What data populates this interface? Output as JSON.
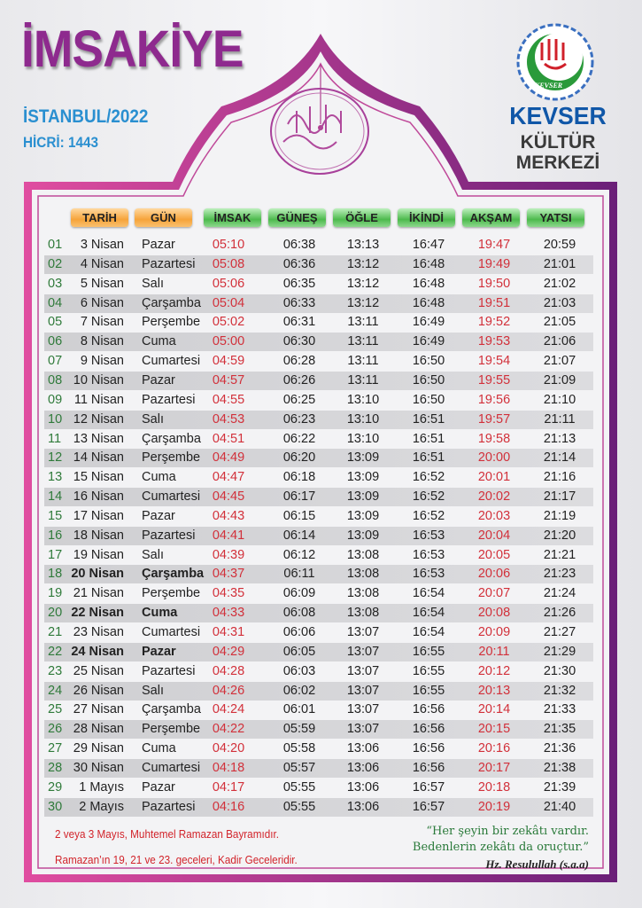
{
  "header": {
    "title": "İMSAKİYE",
    "city_year": "İSTANBUL/2022",
    "hicri": "HİCRİ: 1443",
    "org_name": "KEVSER",
    "org_sub1": "KÜLTÜR",
    "org_sub2": "MERKEZİ",
    "logo_text": "KEVSER"
  },
  "colors": {
    "frame_start": "#e04da0",
    "frame_end": "#6a1f78",
    "title": "#8e2a8e",
    "city": "#2a8fd0",
    "red_time": "#d2303a",
    "row_number": "#2f7a3a"
  },
  "columns": [
    "TARİH",
    "GÜN",
    "İMSAK",
    "GÜNEŞ",
    "ÖĞLE",
    "İKİNDİ",
    "AKŞAM",
    "YATSI"
  ],
  "rows": [
    {
      "n": "01",
      "tarih": "3 Nisan",
      "gun": "Pazar",
      "imsak": "05:10",
      "gunes": "06:38",
      "ogle": "13:13",
      "ikindi": "16:47",
      "aksam": "19:47",
      "yatsi": "20:59"
    },
    {
      "n": "02",
      "tarih": "4 Nisan",
      "gun": "Pazartesi",
      "imsak": "05:08",
      "gunes": "06:36",
      "ogle": "13:12",
      "ikindi": "16:48",
      "aksam": "19:49",
      "yatsi": "21:01"
    },
    {
      "n": "03",
      "tarih": "5 Nisan",
      "gun": "Salı",
      "imsak": "05:06",
      "gunes": "06:35",
      "ogle": "13:12",
      "ikindi": "16:48",
      "aksam": "19:50",
      "yatsi": "21:02"
    },
    {
      "n": "04",
      "tarih": "6 Nisan",
      "gun": "Çarşamba",
      "imsak": "05:04",
      "gunes": "06:33",
      "ogle": "13:12",
      "ikindi": "16:48",
      "aksam": "19:51",
      "yatsi": "21:03"
    },
    {
      "n": "05",
      "tarih": "7 Nisan",
      "gun": "Perşembe",
      "imsak": "05:02",
      "gunes": "06:31",
      "ogle": "13:11",
      "ikindi": "16:49",
      "aksam": "19:52",
      "yatsi": "21:05"
    },
    {
      "n": "06",
      "tarih": "8 Nisan",
      "gun": "Cuma",
      "imsak": "05:00",
      "gunes": "06:30",
      "ogle": "13:11",
      "ikindi": "16:49",
      "aksam": "19:53",
      "yatsi": "21:06"
    },
    {
      "n": "07",
      "tarih": "9 Nisan",
      "gun": "Cumartesi",
      "imsak": "04:59",
      "gunes": "06:28",
      "ogle": "13:11",
      "ikindi": "16:50",
      "aksam": "19:54",
      "yatsi": "21:07"
    },
    {
      "n": "08",
      "tarih": "10 Nisan",
      "gun": "Pazar",
      "imsak": "04:57",
      "gunes": "06:26",
      "ogle": "13:11",
      "ikindi": "16:50",
      "aksam": "19:55",
      "yatsi": "21:09"
    },
    {
      "n": "09",
      "tarih": "11 Nisan",
      "gun": "Pazartesi",
      "imsak": "04:55",
      "gunes": "06:25",
      "ogle": "13:10",
      "ikindi": "16:50",
      "aksam": "19:56",
      "yatsi": "21:10"
    },
    {
      "n": "10",
      "tarih": "12 Nisan",
      "gun": "Salı",
      "imsak": "04:53",
      "gunes": "06:23",
      "ogle": "13:10",
      "ikindi": "16:51",
      "aksam": "19:57",
      "yatsi": "21:11"
    },
    {
      "n": "11",
      "tarih": "13 Nisan",
      "gun": "Çarşamba",
      "imsak": "04:51",
      "gunes": "06:22",
      "ogle": "13:10",
      "ikindi": "16:51",
      "aksam": "19:58",
      "yatsi": "21:13"
    },
    {
      "n": "12",
      "tarih": "14 Nisan",
      "gun": "Perşembe",
      "imsak": "04:49",
      "gunes": "06:20",
      "ogle": "13:09",
      "ikindi": "16:51",
      "aksam": "20:00",
      "yatsi": "21:14"
    },
    {
      "n": "13",
      "tarih": "15 Nisan",
      "gun": "Cuma",
      "imsak": "04:47",
      "gunes": "06:18",
      "ogle": "13:09",
      "ikindi": "16:52",
      "aksam": "20:01",
      "yatsi": "21:16"
    },
    {
      "n": "14",
      "tarih": "16 Nisan",
      "gun": "Cumartesi",
      "imsak": "04:45",
      "gunes": "06:17",
      "ogle": "13:09",
      "ikindi": "16:52",
      "aksam": "20:02",
      "yatsi": "21:17"
    },
    {
      "n": "15",
      "tarih": "17 Nisan",
      "gun": "Pazar",
      "imsak": "04:43",
      "gunes": "06:15",
      "ogle": "13:09",
      "ikindi": "16:52",
      "aksam": "20:03",
      "yatsi": "21:19"
    },
    {
      "n": "16",
      "tarih": "18 Nisan",
      "gun": "Pazartesi",
      "imsak": "04:41",
      "gunes": "06:14",
      "ogle": "13:09",
      "ikindi": "16:53",
      "aksam": "20:04",
      "yatsi": "21:20"
    },
    {
      "n": "17",
      "tarih": "19 Nisan",
      "gun": "Salı",
      "imsak": "04:39",
      "gunes": "06:12",
      "ogle": "13:08",
      "ikindi": "16:53",
      "aksam": "20:05",
      "yatsi": "21:21"
    },
    {
      "n": "18",
      "tarih": "20 Nisan",
      "gun": "Çarşamba",
      "imsak": "04:37",
      "gunes": "06:11",
      "ogle": "13:08",
      "ikindi": "16:53",
      "aksam": "20:06",
      "yatsi": "21:23",
      "bold": true
    },
    {
      "n": "19",
      "tarih": "21 Nisan",
      "gun": "Perşembe",
      "imsak": "04:35",
      "gunes": "06:09",
      "ogle": "13:08",
      "ikindi": "16:54",
      "aksam": "20:07",
      "yatsi": "21:24"
    },
    {
      "n": "20",
      "tarih": "22 Nisan",
      "gun": "Cuma",
      "imsak": "04:33",
      "gunes": "06:08",
      "ogle": "13:08",
      "ikindi": "16:54",
      "aksam": "20:08",
      "yatsi": "21:26",
      "bold": true
    },
    {
      "n": "21",
      "tarih": "23 Nisan",
      "gun": "Cumartesi",
      "imsak": "04:31",
      "gunes": "06:06",
      "ogle": "13:07",
      "ikindi": "16:54",
      "aksam": "20:09",
      "yatsi": "21:27"
    },
    {
      "n": "22",
      "tarih": "24 Nisan",
      "gun": "Pazar",
      "imsak": "04:29",
      "gunes": "06:05",
      "ogle": "13:07",
      "ikindi": "16:55",
      "aksam": "20:11",
      "yatsi": "21:29",
      "bold": true
    },
    {
      "n": "23",
      "tarih": "25 Nisan",
      "gun": "Pazartesi",
      "imsak": "04:28",
      "gunes": "06:03",
      "ogle": "13:07",
      "ikindi": "16:55",
      "aksam": "20:12",
      "yatsi": "21:30"
    },
    {
      "n": "24",
      "tarih": "26 Nisan",
      "gun": "Salı",
      "imsak": "04:26",
      "gunes": "06:02",
      "ogle": "13:07",
      "ikindi": "16:55",
      "aksam": "20:13",
      "yatsi": "21:32"
    },
    {
      "n": "25",
      "tarih": "27 Nisan",
      "gun": "Çarşamba",
      "imsak": "04:24",
      "gunes": "06:01",
      "ogle": "13:07",
      "ikindi": "16:56",
      "aksam": "20:14",
      "yatsi": "21:33"
    },
    {
      "n": "26",
      "tarih": "28 Nisan",
      "gun": "Perşembe",
      "imsak": "04:22",
      "gunes": "05:59",
      "ogle": "13:07",
      "ikindi": "16:56",
      "aksam": "20:15",
      "yatsi": "21:35"
    },
    {
      "n": "27",
      "tarih": "29 Nisan",
      "gun": "Cuma",
      "imsak": "04:20",
      "gunes": "05:58",
      "ogle": "13:06",
      "ikindi": "16:56",
      "aksam": "20:16",
      "yatsi": "21:36"
    },
    {
      "n": "28",
      "tarih": "30 Nisan",
      "gun": "Cumartesi",
      "imsak": "04:18",
      "gunes": "05:57",
      "ogle": "13:06",
      "ikindi": "16:56",
      "aksam": "20:17",
      "yatsi": "21:38"
    },
    {
      "n": "29",
      "tarih": "1 Mayıs",
      "gun": "Pazar",
      "imsak": "04:17",
      "gunes": "05:55",
      "ogle": "13:06",
      "ikindi": "16:57",
      "aksam": "20:18",
      "yatsi": "21:39"
    },
    {
      "n": "30",
      "tarih": "2 Mayıs",
      "gun": "Pazartesi",
      "imsak": "04:16",
      "gunes": "05:55",
      "ogle": "13:06",
      "ikindi": "16:57",
      "aksam": "20:19",
      "yatsi": "21:40"
    }
  ],
  "footer": {
    "note1": "2 veya 3 Mayıs, Muhtemel Ramazan Bayramıdır.",
    "note2": "Ramazan’ın 19, 21 ve 23. geceleri, Kadir Geceleridir.",
    "quote_line1": "“Her şeyin bir zekâtı vardır.",
    "quote_line2": "Bedenlerin zekâtı da oruçtur.”",
    "quote_source": "Hz. Resulullah (s.a.a)"
  }
}
